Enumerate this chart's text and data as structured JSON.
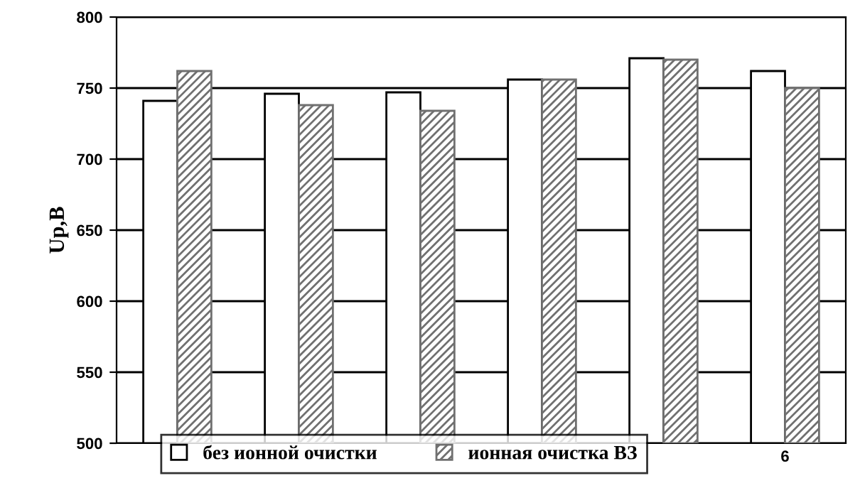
{
  "chart_data": {
    "type": "bar",
    "ylabel": "Up,B",
    "categories": [
      null,
      null,
      null,
      null,
      null,
      "6"
    ],
    "series": [
      {
        "name": "без ионной очистки",
        "color": "#ffffff",
        "values": [
          741,
          746,
          747,
          756,
          771,
          762
        ]
      },
      {
        "name": "ионная очистка ВЗ",
        "color": "#707070",
        "values": [
          762,
          738,
          734,
          756,
          770,
          750
        ]
      }
    ],
    "ylim": [
      500,
      800
    ],
    "yticks": [
      500,
      550,
      600,
      650,
      700,
      750,
      800
    ],
    "grid": "y",
    "legend": "bottom"
  }
}
